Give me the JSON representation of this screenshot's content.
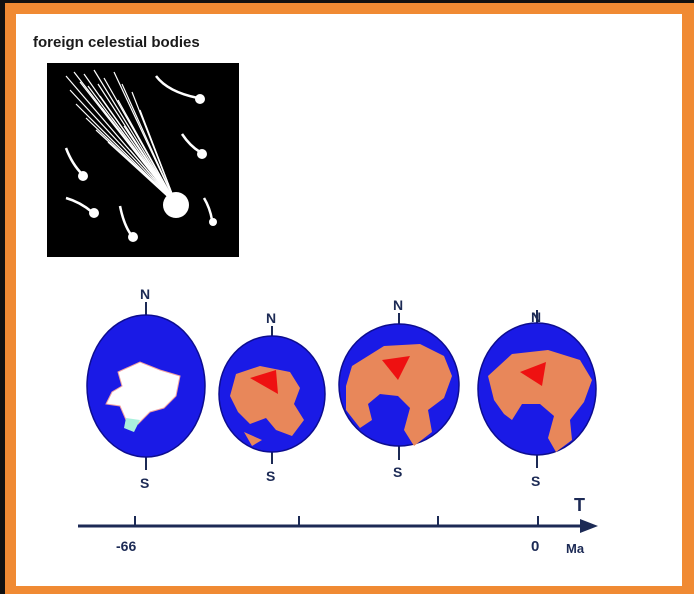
{
  "title": "foreign celestial bodies",
  "poles": {
    "north": "N",
    "south": "S"
  },
  "axis": {
    "symbol": "T",
    "unit": "Ma",
    "tick_labels": [
      "-66",
      "0"
    ]
  },
  "colors": {
    "frame_outer": "#111111",
    "frame_inner": "#f08a33",
    "ocean": "#1a1ae6",
    "continent": "#e8875a",
    "highlight": "#ee1111",
    "axis": "#1c2a55"
  },
  "globes": [
    {
      "name": "globe-minus-66"
    },
    {
      "name": "globe-2"
    },
    {
      "name": "globe-3"
    },
    {
      "name": "globe-0"
    }
  ]
}
